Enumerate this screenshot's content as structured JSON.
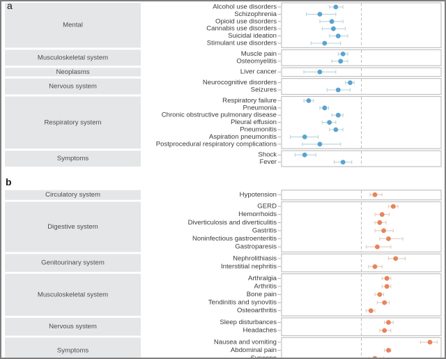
{
  "chart_data": [
    {
      "type": "scatter",
      "subtype": "forest-plot",
      "title": "a",
      "xlabel": "",
      "ylabel": "",
      "xlim": [
        -1,
        1
      ],
      "reference_line": 0,
      "grid": false,
      "marker_color": "#5ba3cf",
      "ci_color": "#b7d3dc",
      "groups": [
        {
          "name": "Mental",
          "rows": [
            {
              "label": "Alcohol use disorders",
              "estimate": -0.32,
              "ci_low": -0.4,
              "ci_high": -0.23
            },
            {
              "label": "Schizophrenia",
              "estimate": -0.52,
              "ci_low": -0.69,
              "ci_high": -0.32
            },
            {
              "label": "Opioid use disorders",
              "estimate": -0.37,
              "ci_low": -0.52,
              "ci_high": -0.23
            },
            {
              "label": "Cannabis use disorders",
              "estimate": -0.35,
              "ci_low": -0.49,
              "ci_high": -0.2
            },
            {
              "label": "Suicidal ideation",
              "estimate": -0.29,
              "ci_low": -0.4,
              "ci_high": -0.17
            },
            {
              "label": "Stimulant use disorders",
              "estimate": -0.46,
              "ci_low": -0.63,
              "ci_high": -0.26
            }
          ]
        },
        {
          "name": "Musculoskeletal system",
          "rows": [
            {
              "label": "Muscle pain",
              "estimate": -0.23,
              "ci_low": -0.29,
              "ci_high": -0.17
            },
            {
              "label": "Osteomyelitis",
              "estimate": -0.26,
              "ci_low": -0.37,
              "ci_high": -0.17
            }
          ]
        },
        {
          "name": "Neoplasms",
          "rows": [
            {
              "label": "Liver cancer",
              "estimate": -0.52,
              "ci_low": -0.72,
              "ci_high": -0.32
            }
          ]
        },
        {
          "name": "Nervous system",
          "rows": [
            {
              "label": "Neurocognitive disorders",
              "estimate": -0.14,
              "ci_low": -0.2,
              "ci_high": -0.09
            },
            {
              "label": "Seizures",
              "estimate": -0.29,
              "ci_low": -0.43,
              "ci_high": -0.14
            }
          ]
        },
        {
          "name": "Respiratory system",
          "rows": [
            {
              "label": "Respiratory failure",
              "estimate": -0.66,
              "ci_low": -0.72,
              "ci_high": -0.6
            },
            {
              "label": "Pneumonia",
              "estimate": -0.46,
              "ci_low": -0.52,
              "ci_high": -0.41
            },
            {
              "label": "Chronic obstructive pulmonary disease",
              "estimate": -0.29,
              "ci_low": -0.37,
              "ci_high": -0.23
            },
            {
              "label": "Pleural effusion",
              "estimate": -0.4,
              "ci_low": -0.49,
              "ci_high": -0.32
            },
            {
              "label": "Pneumonitis",
              "estimate": -0.32,
              "ci_low": -0.4,
              "ci_high": -0.23
            },
            {
              "label": "Aspiration pneumonitis",
              "estimate": -0.71,
              "ci_low": -0.89,
              "ci_high": -0.54
            },
            {
              "label": "Postprocedural respiratory complications",
              "estimate": -0.52,
              "ci_low": -0.74,
              "ci_high": -0.26
            }
          ]
        },
        {
          "name": "Symptoms",
          "rows": [
            {
              "label": "Shock",
              "estimate": -0.71,
              "ci_low": -0.83,
              "ci_high": -0.57
            },
            {
              "label": "Fever",
              "estimate": -0.23,
              "ci_low": -0.34,
              "ci_high": -0.12
            }
          ]
        }
      ]
    },
    {
      "type": "scatter",
      "subtype": "forest-plot",
      "title": "b",
      "xlabel": "",
      "ylabel": "",
      "xlim": [
        -1,
        1
      ],
      "reference_line": 0,
      "grid": false,
      "marker_color": "#e8835c",
      "ci_color": "#e2cbbb",
      "groups": [
        {
          "name": "Circulatory system",
          "rows": [
            {
              "label": "Hypotension",
              "estimate": 0.17,
              "ci_low": 0.11,
              "ci_high": 0.26
            }
          ]
        },
        {
          "name": "Digestive system",
          "rows": [
            {
              "label": "GERD",
              "estimate": 0.4,
              "ci_low": 0.34,
              "ci_high": 0.46
            },
            {
              "label": "Hemorrhoids",
              "estimate": 0.26,
              "ci_low": 0.17,
              "ci_high": 0.35
            },
            {
              "label": "Diverticulosis and diverticulitis",
              "estimate": 0.23,
              "ci_low": 0.17,
              "ci_high": 0.31
            },
            {
              "label": "Gastritis",
              "estimate": 0.28,
              "ci_low": 0.17,
              "ci_high": 0.4
            },
            {
              "label": "Noninfectious gastroenteritis",
              "estimate": 0.34,
              "ci_low": 0.23,
              "ci_high": 0.52
            },
            {
              "label": "Gastroparesis",
              "estimate": 0.2,
              "ci_low": 0.06,
              "ci_high": 0.37
            }
          ]
        },
        {
          "name": "Genitourinary system",
          "rows": [
            {
              "label": "Nephrolithiasis",
              "estimate": 0.43,
              "ci_low": 0.34,
              "ci_high": 0.55
            },
            {
              "label": "Interstitial nephritis",
              "estimate": 0.17,
              "ci_low": 0.09,
              "ci_high": 0.26
            }
          ]
        },
        {
          "name": "Musculoskeletal system",
          "rows": [
            {
              "label": "Arthralgia",
              "estimate": 0.32,
              "ci_low": 0.26,
              "ci_high": 0.37
            },
            {
              "label": "Arthritis",
              "estimate": 0.32,
              "ci_low": 0.26,
              "ci_high": 0.37
            },
            {
              "label": "Bone pain",
              "estimate": 0.23,
              "ci_low": 0.17,
              "ci_high": 0.28
            },
            {
              "label": "Tendinitis and synovitis",
              "estimate": 0.29,
              "ci_low": 0.2,
              "ci_high": 0.35
            },
            {
              "label": "Osteoarthritis",
              "estimate": 0.12,
              "ci_low": 0.06,
              "ci_high": 0.17
            }
          ]
        },
        {
          "name": "Nervous system",
          "rows": [
            {
              "label": "Sleep disturbances",
              "estimate": 0.34,
              "ci_low": 0.29,
              "ci_high": 0.4
            },
            {
              "label": "Headaches",
              "estimate": 0.29,
              "ci_low": 0.23,
              "ci_high": 0.37
            }
          ]
        },
        {
          "name": "Symptoms",
          "rows": [
            {
              "label": "Nausea and vomiting",
              "estimate": 0.86,
              "ci_low": 0.74,
              "ci_high": 0.95
            },
            {
              "label": "Abdominal pain",
              "estimate": 0.34,
              "ci_low": 0.29,
              "ci_high": 0.37
            },
            {
              "label": "Syncope",
              "estimate": 0.17,
              "ci_low": 0.09,
              "ci_high": 0.28
            }
          ]
        }
      ]
    }
  ]
}
